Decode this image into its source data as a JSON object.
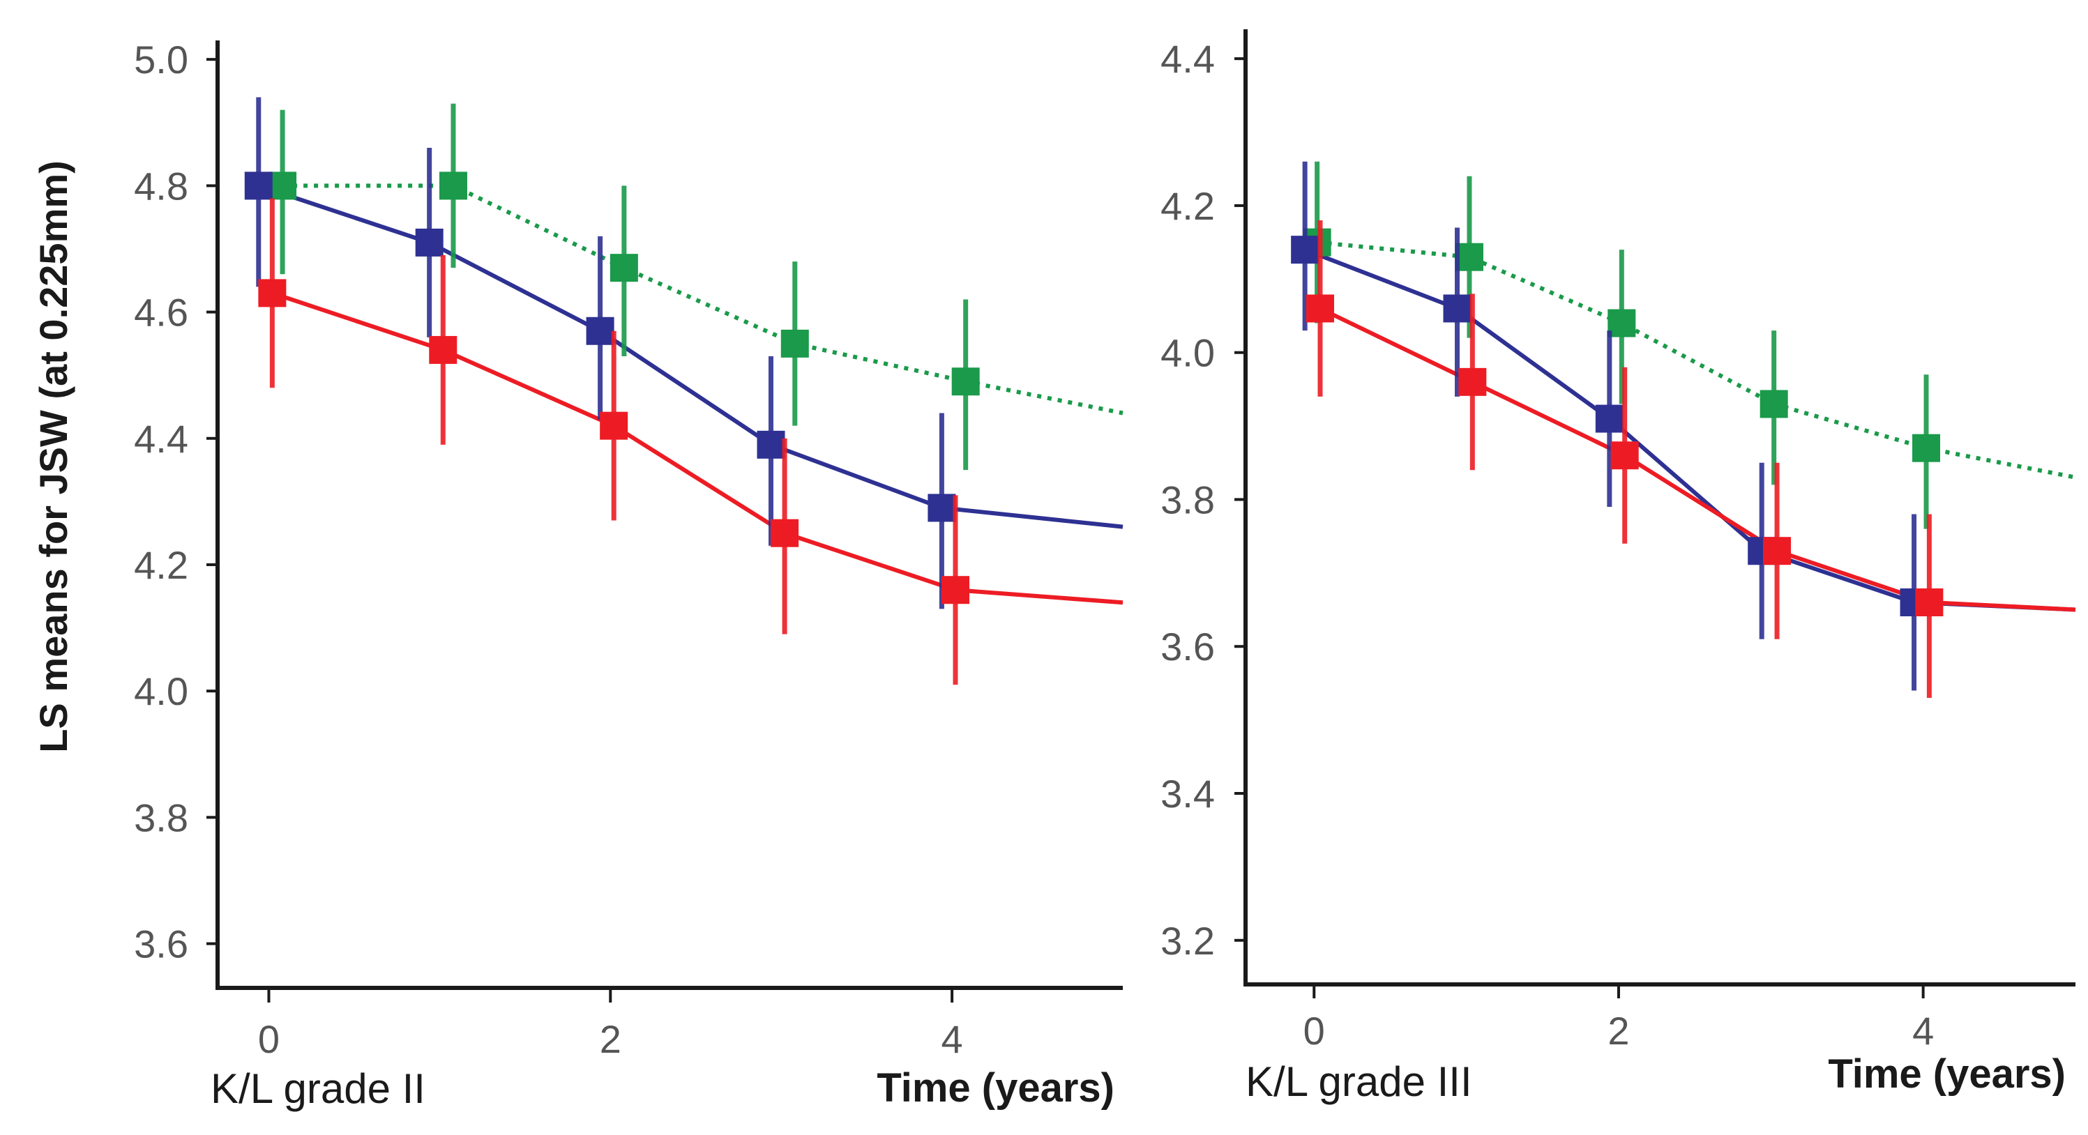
{
  "chart_data": [
    {
      "type": "line",
      "panel_label": "K/L grade II",
      "xlabel": "Time (years)",
      "ylabel": "LS means for JSW (at 0.225mm)",
      "xlim": [
        -0.3,
        5.0
      ],
      "ylim": [
        3.53,
        5.03
      ],
      "xticks": [
        0,
        2,
        4
      ],
      "xtick_labels": [
        "0",
        "2",
        "4"
      ],
      "yticks": [
        3.6,
        3.8,
        4.0,
        4.2,
        4.4,
        4.6,
        4.8,
        5.0
      ],
      "ytick_labels": [
        "3.6",
        "3.8",
        "4.0",
        "4.2",
        "4.4",
        "4.6",
        "4.8",
        "5.0"
      ],
      "series": [
        {
          "name": "green",
          "color": "#1a9a4a",
          "style": "dotted",
          "curve_end": [
            5.0,
            4.44
          ],
          "points": [
            {
              "x": 0,
              "y": 4.8,
              "lo": 4.66,
              "hi": 4.92
            },
            {
              "x": 1,
              "y": 4.8,
              "lo": 4.67,
              "hi": 4.93
            },
            {
              "x": 2,
              "y": 4.67,
              "lo": 4.53,
              "hi": 4.8
            },
            {
              "x": 3,
              "y": 4.55,
              "lo": 4.42,
              "hi": 4.68
            },
            {
              "x": 4,
              "y": 4.49,
              "lo": 4.35,
              "hi": 4.62
            }
          ]
        },
        {
          "name": "navy",
          "color": "#2e3192",
          "style": "solid",
          "curve_end": [
            5.0,
            4.26
          ],
          "points": [
            {
              "x": 0,
              "y": 4.8,
              "lo": 4.64,
              "hi": 4.94
            },
            {
              "x": 1,
              "y": 4.71,
              "lo": 4.56,
              "hi": 4.86
            },
            {
              "x": 2,
              "y": 4.57,
              "lo": 4.43,
              "hi": 4.72
            },
            {
              "x": 3,
              "y": 4.39,
              "lo": 4.23,
              "hi": 4.53
            },
            {
              "x": 4,
              "y": 4.29,
              "lo": 4.13,
              "hi": 4.44
            }
          ]
        },
        {
          "name": "red",
          "color": "#ed1c24",
          "style": "solid",
          "curve_end": [
            5.0,
            4.14
          ],
          "points": [
            {
              "x": 0,
              "y": 4.63,
              "lo": 4.48,
              "hi": 4.78
            },
            {
              "x": 1,
              "y": 4.54,
              "lo": 4.39,
              "hi": 4.69
            },
            {
              "x": 2,
              "y": 4.42,
              "lo": 4.27,
              "hi": 4.57
            },
            {
              "x": 3,
              "y": 4.25,
              "lo": 4.09,
              "hi": 4.4
            },
            {
              "x": 4,
              "y": 4.16,
              "lo": 4.01,
              "hi": 4.31
            }
          ]
        }
      ]
    },
    {
      "type": "line",
      "panel_label": "K/L grade III",
      "xlabel": "Time (years)",
      "ylabel": "",
      "xlim": [
        -0.45,
        5.0
      ],
      "ylim": [
        3.14,
        4.44
      ],
      "xticks": [
        0,
        2,
        4
      ],
      "xtick_labels": [
        "0",
        "2",
        "4"
      ],
      "yticks": [
        3.2,
        3.4,
        3.6,
        3.8,
        4.0,
        4.2,
        4.4
      ],
      "ytick_labels": [
        "3.2",
        "3.4",
        "3.6",
        "3.8",
        "4.0",
        "4.2",
        "4.4"
      ],
      "series": [
        {
          "name": "green",
          "color": "#1a9a4a",
          "style": "dotted",
          "curve_end": [
            5.0,
            3.83
          ],
          "points": [
            {
              "x": 0,
              "y": 4.15,
              "lo": 4.04,
              "hi": 4.26
            },
            {
              "x": 1,
              "y": 4.13,
              "lo": 4.02,
              "hi": 4.24
            },
            {
              "x": 2,
              "y": 4.04,
              "lo": 3.93,
              "hi": 4.14
            },
            {
              "x": 3,
              "y": 3.93,
              "lo": 3.82,
              "hi": 4.03
            },
            {
              "x": 4,
              "y": 3.87,
              "lo": 3.76,
              "hi": 3.97
            }
          ]
        },
        {
          "name": "navy",
          "color": "#2e3192",
          "style": "solid",
          "curve_end": [
            5.0,
            3.65
          ],
          "points": [
            {
              "x": 0,
              "y": 4.14,
              "lo": 4.03,
              "hi": 4.26
            },
            {
              "x": 1,
              "y": 4.06,
              "lo": 3.94,
              "hi": 4.17
            },
            {
              "x": 2,
              "y": 3.91,
              "lo": 3.79,
              "hi": 4.03
            },
            {
              "x": 3,
              "y": 3.73,
              "lo": 3.61,
              "hi": 3.85
            },
            {
              "x": 4,
              "y": 3.66,
              "lo": 3.54,
              "hi": 3.78
            }
          ]
        },
        {
          "name": "red",
          "color": "#ed1c24",
          "style": "solid",
          "curve_end": [
            5.0,
            3.65
          ],
          "points": [
            {
              "x": 0,
              "y": 4.06,
              "lo": 3.94,
              "hi": 4.18
            },
            {
              "x": 1,
              "y": 3.96,
              "lo": 3.84,
              "hi": 4.08
            },
            {
              "x": 2,
              "y": 3.86,
              "lo": 3.74,
              "hi": 3.98
            },
            {
              "x": 3,
              "y": 3.73,
              "lo": 3.61,
              "hi": 3.85
            },
            {
              "x": 4,
              "y": 3.66,
              "lo": 3.53,
              "hi": 3.78
            }
          ]
        }
      ]
    }
  ]
}
